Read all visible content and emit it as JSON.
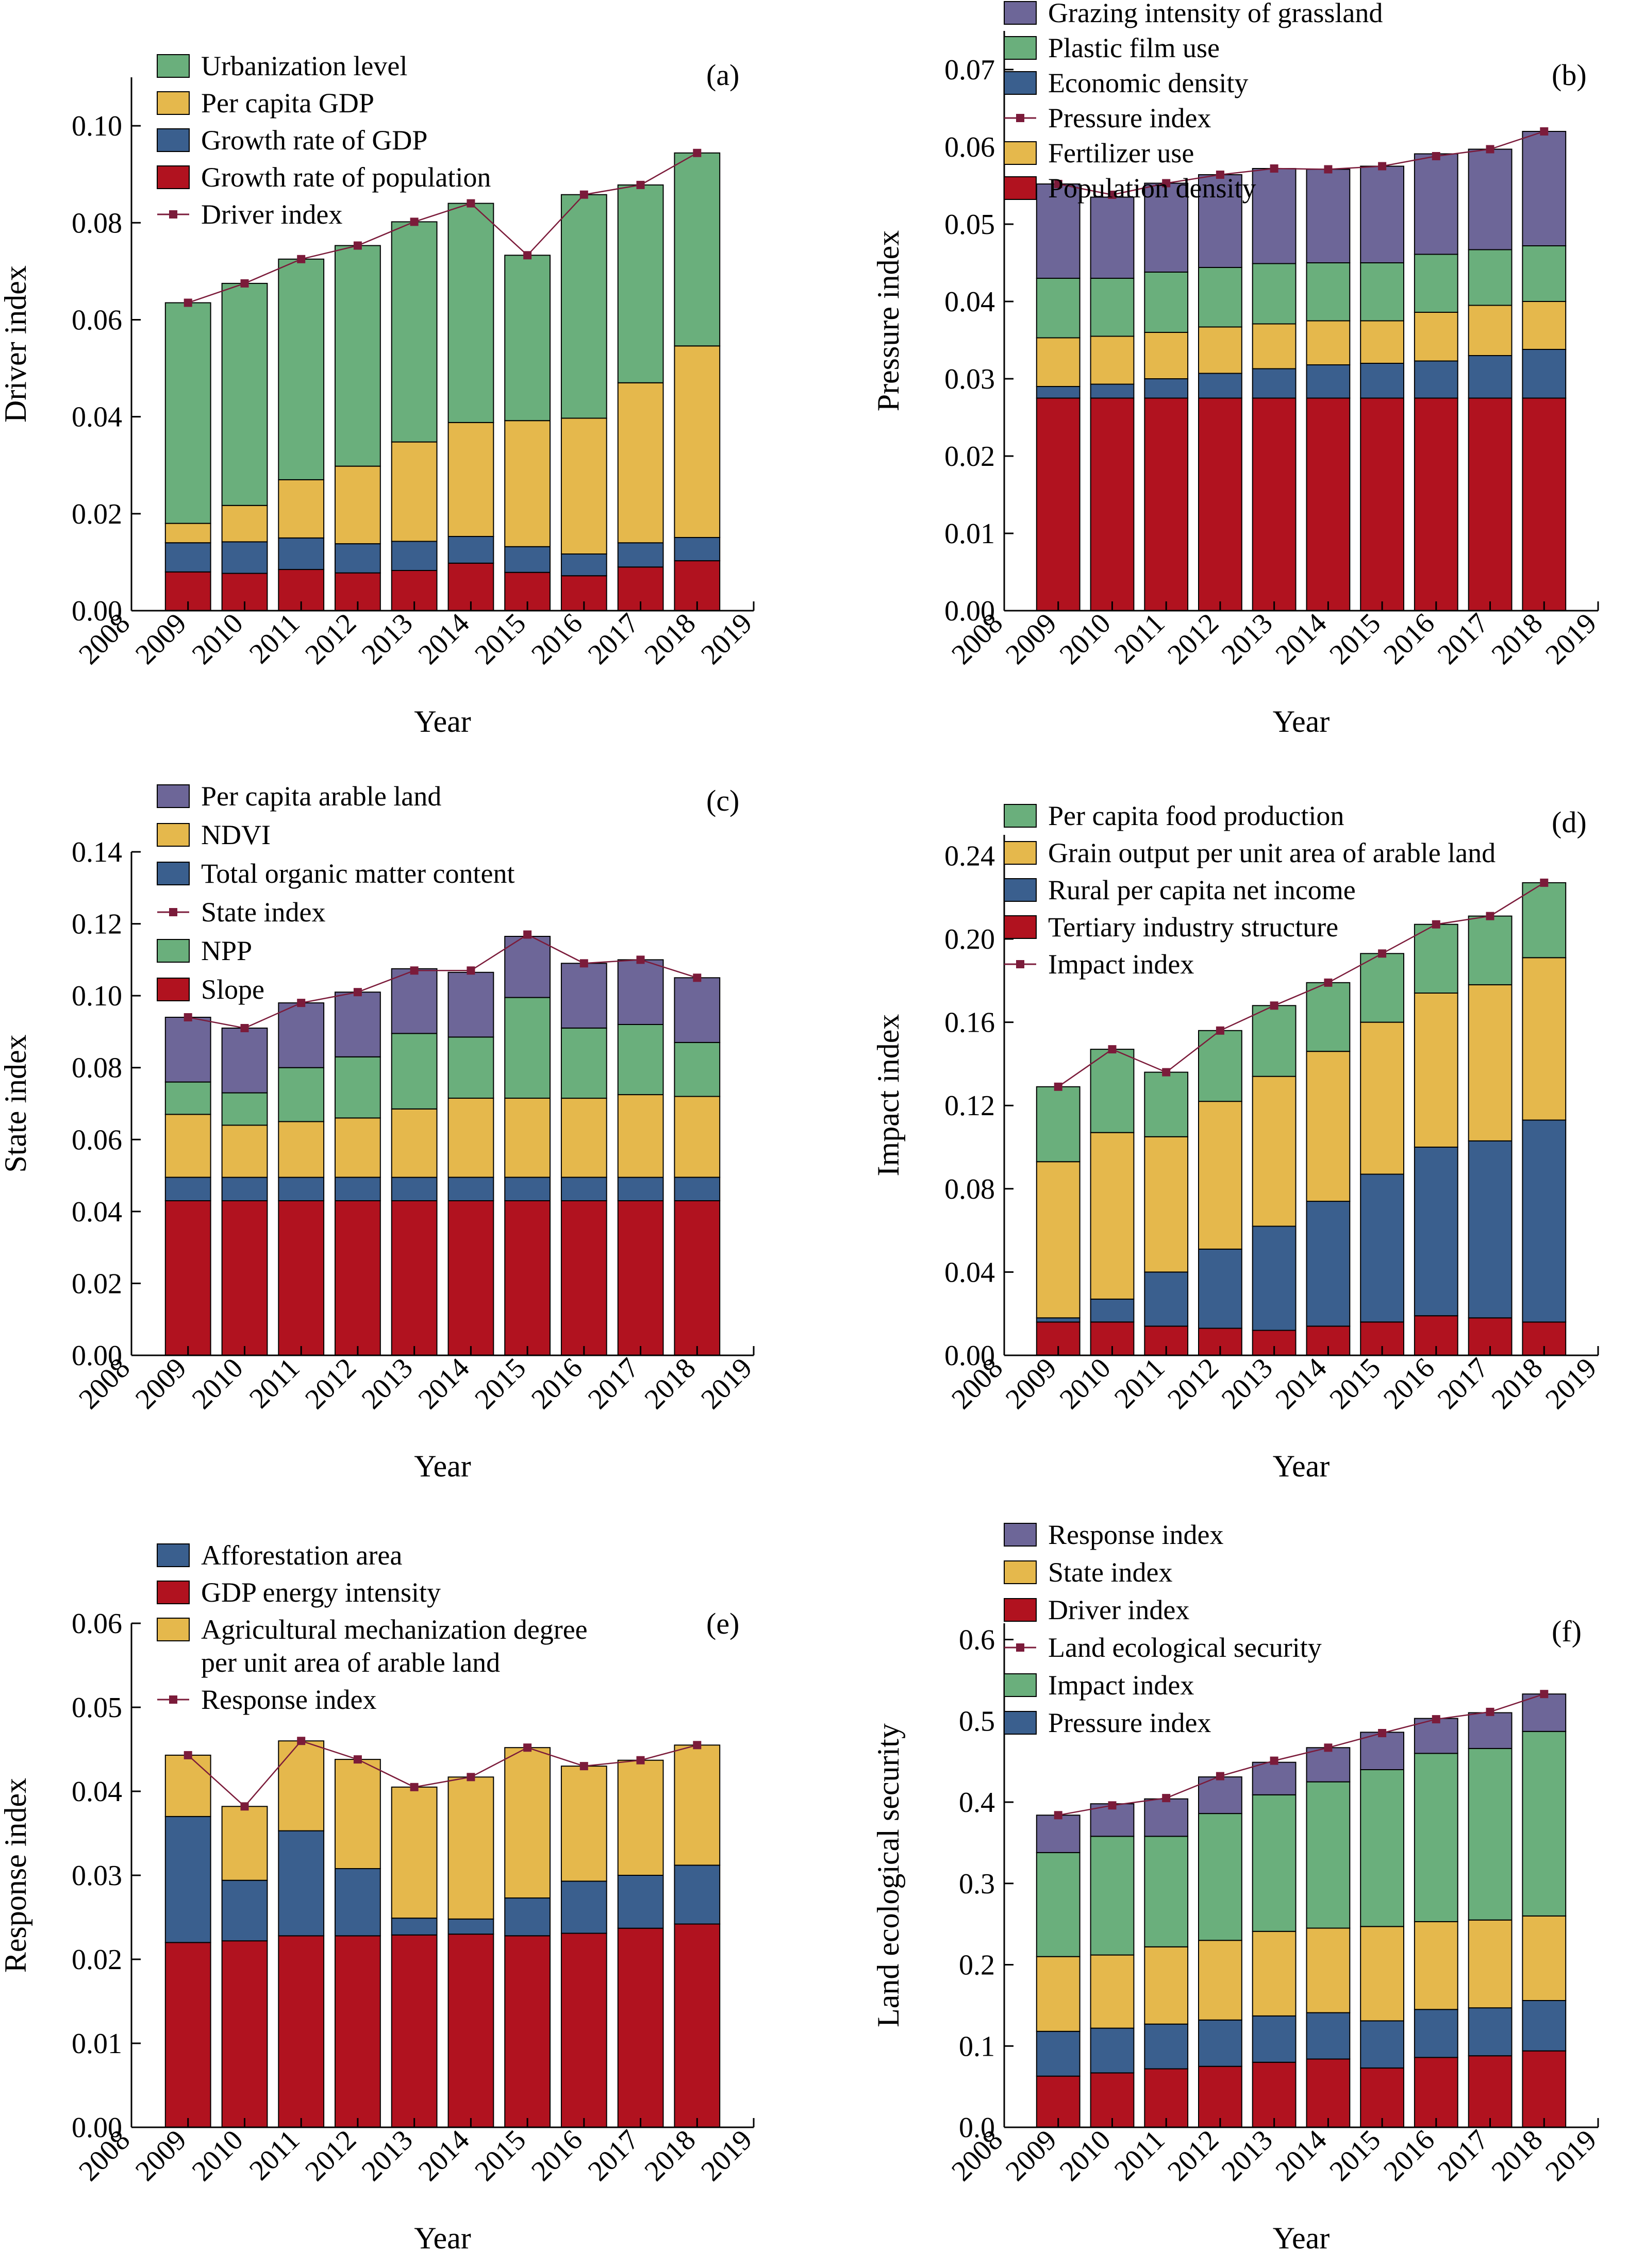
{
  "colors": {
    "green": "#6aaf7c",
    "yellow": "#e5b84c",
    "blue": "#3a5f8e",
    "red": "#b1121f",
    "purple": "#6d6698",
    "line": "#7b1b3a"
  },
  "chart_data": [
    {
      "type": "bar",
      "panel": "(a)",
      "xlabel": "Year",
      "ylabel": "Driver index",
      "xlim": [
        2008,
        2019
      ],
      "ylim": [
        0,
        0.11
      ],
      "yticks": [
        "0.00",
        "0.02",
        "0.04",
        "0.06",
        "0.08",
        "0.10"
      ],
      "categories": [
        2009,
        2010,
        2011,
        2012,
        2013,
        2014,
        2015,
        2016,
        2017,
        2018
      ],
      "stack_order": [
        "Growth rate of population",
        "Growth rate of GDP",
        "Per capita GDP",
        "Urbanization level"
      ],
      "series": [
        {
          "name": "Urbanization level",
          "color": "green",
          "values": [
            0.0455,
            0.0458,
            0.0455,
            0.0455,
            0.0454,
            0.0452,
            0.0341,
            0.0461,
            0.0408,
            0.0398
          ]
        },
        {
          "name": "Per capita GDP",
          "color": "yellow",
          "values": [
            0.004,
            0.0075,
            0.012,
            0.016,
            0.0205,
            0.0235,
            0.026,
            0.028,
            0.033,
            0.0395
          ]
        },
        {
          "name": "Growth rate of GDP",
          "color": "blue",
          "values": [
            0.006,
            0.0065,
            0.0065,
            0.006,
            0.006,
            0.0055,
            0.0053,
            0.0045,
            0.005,
            0.0048
          ]
        },
        {
          "name": "Growth rate of population",
          "color": "red",
          "values": [
            0.008,
            0.0077,
            0.0085,
            0.0078,
            0.0083,
            0.0098,
            0.0079,
            0.0072,
            0.009,
            0.0103
          ]
        }
      ],
      "line": {
        "name": "Driver index",
        "values": [
          0.0635,
          0.0675,
          0.0725,
          0.0753,
          0.0802,
          0.084,
          0.0733,
          0.0858,
          0.0878,
          0.0944
        ]
      },
      "legend": [
        "Urbanization level",
        "Per capita GDP",
        "Growth rate of GDP",
        "Growth rate of population",
        "Driver index"
      ]
    },
    {
      "type": "bar",
      "panel": "(b)",
      "xlabel": "Year",
      "ylabel": "Pressure index",
      "xlim": [
        2008,
        2019
      ],
      "ylim": [
        0,
        0.075
      ],
      "yticks": [
        "0.00",
        "0.01",
        "0.02",
        "0.03",
        "0.04",
        "0.05",
        "0.06",
        "0.07"
      ],
      "categories": [
        2009,
        2010,
        2011,
        2012,
        2013,
        2014,
        2015,
        2016,
        2017,
        2018
      ],
      "stack_order": [
        "Population density",
        "Economic density",
        "Fertilizer use",
        "Plastic film use",
        "Grazing intensity of grassland"
      ],
      "series": [
        {
          "name": "Grazing intensity of grassland",
          "color": "purple",
          "values": [
            0.0122,
            0.0105,
            0.0115,
            0.012,
            0.0123,
            0.0121,
            0.0125,
            0.013,
            0.013,
            0.0148
          ]
        },
        {
          "name": "Plastic film use",
          "color": "green",
          "values": [
            0.0077,
            0.0075,
            0.0078,
            0.0077,
            0.0078,
            0.0075,
            0.0075,
            0.0075,
            0.0072,
            0.0072
          ]
        },
        {
          "name": "Economic density",
          "color": "blue",
          "values": [
            0.0015,
            0.0018,
            0.0025,
            0.0032,
            0.0038,
            0.0043,
            0.0045,
            0.0048,
            0.0055,
            0.0063
          ]
        },
        {
          "name": "Fertilizer use",
          "color": "yellow",
          "values": [
            0.0063,
            0.0062,
            0.006,
            0.006,
            0.0058,
            0.0057,
            0.0055,
            0.0063,
            0.0065,
            0.0062
          ]
        },
        {
          "name": "Population density",
          "color": "red",
          "values": [
            0.0275,
            0.0275,
            0.0275,
            0.0275,
            0.0275,
            0.0275,
            0.0275,
            0.0275,
            0.0275,
            0.0275
          ]
        }
      ],
      "line": {
        "name": "Pressure index",
        "values": [
          0.0552,
          0.0538,
          0.0553,
          0.0564,
          0.0572,
          0.0571,
          0.0575,
          0.0588,
          0.0597,
          0.062
        ]
      },
      "legend": [
        "Grazing intensity of grassland",
        "Plastic film use",
        "Economic density",
        "Pressure index",
        "Fertilizer use",
        "Population density"
      ]
    },
    {
      "type": "bar",
      "panel": "(c)",
      "xlabel": "Year",
      "ylabel": "State index",
      "xlim": [
        2008,
        2019
      ],
      "ylim": [
        0,
        0.14
      ],
      "yticks": [
        "0.00",
        "0.02",
        "0.04",
        "0.06",
        "0.08",
        "0.10",
        "0.12",
        "0.14"
      ],
      "categories": [
        2009,
        2010,
        2011,
        2012,
        2013,
        2014,
        2015,
        2016,
        2017,
        2018
      ],
      "stack_order": [
        "Slope",
        "Total organic matter content",
        "NDVI",
        "NPP",
        "Per capita arable land"
      ],
      "series": [
        {
          "name": "Per capita arable land",
          "color": "purple",
          "values": [
            0.018,
            0.018,
            0.018,
            0.018,
            0.018,
            0.018,
            0.017,
            0.018,
            0.018,
            0.018
          ]
        },
        {
          "name": "NDVI",
          "color": "yellow",
          "values": [
            0.0175,
            0.0145,
            0.0155,
            0.0165,
            0.019,
            0.022,
            0.022,
            0.022,
            0.023,
            0.0225
          ]
        },
        {
          "name": "Total organic matter content",
          "color": "blue",
          "values": [
            0.0065,
            0.0065,
            0.0065,
            0.0065,
            0.0065,
            0.0065,
            0.0065,
            0.0065,
            0.0065,
            0.0065
          ]
        },
        {
          "name": "NPP",
          "color": "green",
          "values": [
            0.009,
            0.009,
            0.015,
            0.017,
            0.021,
            0.017,
            0.028,
            0.0195,
            0.0195,
            0.015
          ]
        },
        {
          "name": "Slope",
          "color": "red",
          "values": [
            0.043,
            0.043,
            0.043,
            0.043,
            0.043,
            0.043,
            0.043,
            0.043,
            0.043,
            0.043
          ]
        }
      ],
      "line": {
        "name": "State index",
        "values": [
          0.094,
          0.091,
          0.098,
          0.101,
          0.107,
          0.107,
          0.117,
          0.109,
          0.11,
          0.105
        ]
      },
      "legend": [
        "Per capita arable land",
        "NDVI",
        "Total organic matter content",
        "State index",
        "NPP",
        "Slope"
      ]
    },
    {
      "type": "bar",
      "panel": "(d)",
      "xlabel": "Year",
      "ylabel": "Impact index",
      "xlim": [
        2008,
        2019
      ],
      "ylim": [
        0,
        0.25
      ],
      "yticks": [
        "0.00",
        "0.04",
        "0.08",
        "0.12",
        "0.16",
        "0.20",
        "0.24"
      ],
      "categories": [
        2009,
        2010,
        2011,
        2012,
        2013,
        2014,
        2015,
        2016,
        2017,
        2018
      ],
      "stack_order": [
        "Tertiary industry structure",
        "Rural per capita net income",
        "Grain output per unit area of arable land",
        "Per capita food production"
      ],
      "series": [
        {
          "name": "Per capita food production",
          "color": "green",
          "values": [
            0.036,
            0.04,
            0.031,
            0.034,
            0.034,
            0.033,
            0.033,
            0.033,
            0.033,
            0.036
          ]
        },
        {
          "name": "Grain output per unit area of arable land",
          "color": "yellow",
          "values": [
            0.075,
            0.08,
            0.065,
            0.071,
            0.072,
            0.072,
            0.073,
            0.074,
            0.075,
            0.078
          ]
        },
        {
          "name": "Rural per capita net income",
          "color": "blue",
          "values": [
            0.002,
            0.011,
            0.026,
            0.038,
            0.05,
            0.06,
            0.071,
            0.081,
            0.085,
            0.097
          ]
        },
        {
          "name": "Tertiary industry structure",
          "color": "red",
          "values": [
            0.016,
            0.016,
            0.014,
            0.013,
            0.012,
            0.014,
            0.016,
            0.019,
            0.018,
            0.016
          ]
        }
      ],
      "line": {
        "name": "Impact index",
        "values": [
          0.129,
          0.147,
          0.136,
          0.156,
          0.168,
          0.179,
          0.193,
          0.207,
          0.211,
          0.227
        ]
      },
      "legend": [
        "Per capita food production",
        "Grain output per unit area of arable land",
        "Rural per capita net income",
        "Tertiary industry structure",
        "Impact index"
      ]
    },
    {
      "type": "bar",
      "panel": "(e)",
      "xlabel": "Year",
      "ylabel": "Response index",
      "xlim": [
        2008,
        2019
      ],
      "ylim": [
        0,
        0.06
      ],
      "yticks": [
        "0.00",
        "0.01",
        "0.02",
        "0.03",
        "0.04",
        "0.05",
        "0.06"
      ],
      "categories": [
        2009,
        2010,
        2011,
        2012,
        2013,
        2014,
        2015,
        2016,
        2017,
        2018
      ],
      "stack_order": [
        "GDP energy intensity",
        "Afforestation area",
        "Agricultural mechanization degree per unit area of arable land"
      ],
      "series": [
        {
          "name": "Afforestation area",
          "color": "blue",
          "values": [
            0.015,
            0.0072,
            0.0125,
            0.008,
            0.002,
            0.0018,
            0.0045,
            0.0062,
            0.0063,
            0.007
          ]
        },
        {
          "name": "GDP energy intensity",
          "color": "red",
          "values": [
            0.022,
            0.0222,
            0.0228,
            0.0228,
            0.0229,
            0.023,
            0.0228,
            0.0231,
            0.0237,
            0.0242
          ]
        },
        {
          "name": "Agricultural mechanization degree per unit area of arable land",
          "color": "yellow",
          "values": [
            0.0073,
            0.0088,
            0.0107,
            0.013,
            0.0156,
            0.0169,
            0.0179,
            0.0137,
            0.0137,
            0.0143
          ]
        }
      ],
      "line": {
        "name": "Response index",
        "values": [
          0.0443,
          0.0382,
          0.046,
          0.0438,
          0.0405,
          0.0417,
          0.0452,
          0.043,
          0.0437,
          0.0455
        ]
      },
      "legend": [
        "Afforestation area",
        "GDP energy intensity",
        "Agricultural mechanization degree per unit area of arable land",
        "Response index"
      ]
    },
    {
      "type": "bar",
      "panel": "(f)",
      "xlabel": "Year",
      "ylabel": "Land ecological security",
      "xlim": [
        2008,
        2019
      ],
      "ylim": [
        0,
        0.62
      ],
      "yticks": [
        "0.0",
        "0.1",
        "0.2",
        "0.3",
        "0.4",
        "0.5",
        "0.6"
      ],
      "categories": [
        2009,
        2010,
        2011,
        2012,
        2013,
        2014,
        2015,
        2016,
        2017,
        2018
      ],
      "stack_order": [
        "Driver index",
        "Pressure index",
        "State index",
        "Impact index",
        "Response index"
      ],
      "series": [
        {
          "name": "Response index",
          "color": "purple",
          "values": [
            0.046,
            0.04,
            0.046,
            0.045,
            0.04,
            0.042,
            0.046,
            0.043,
            0.044,
            0.046
          ]
        },
        {
          "name": "State index",
          "color": "yellow",
          "values": [
            0.092,
            0.09,
            0.095,
            0.098,
            0.104,
            0.104,
            0.116,
            0.108,
            0.108,
            0.104
          ]
        },
        {
          "name": "Driver index",
          "color": "red",
          "values": [
            0.063,
            0.067,
            0.072,
            0.075,
            0.08,
            0.084,
            0.073,
            0.086,
            0.088,
            0.094
          ]
        },
        {
          "name": "Impact index",
          "color": "green",
          "values": [
            0.128,
            0.146,
            0.136,
            0.156,
            0.168,
            0.18,
            0.193,
            0.207,
            0.211,
            0.227
          ]
        },
        {
          "name": "Pressure index",
          "color": "blue",
          "values": [
            0.055,
            0.055,
            0.055,
            0.057,
            0.057,
            0.057,
            0.058,
            0.059,
            0.059,
            0.062
          ]
        }
      ],
      "line": {
        "name": "Land ecological security",
        "values": [
          0.384,
          0.396,
          0.405,
          0.432,
          0.451,
          0.467,
          0.485,
          0.502,
          0.511,
          0.533
        ]
      },
      "legend": [
        "Response index",
        "State index",
        "Driver index",
        "Land ecological security",
        "Impact index",
        "Pressure index"
      ]
    }
  ]
}
